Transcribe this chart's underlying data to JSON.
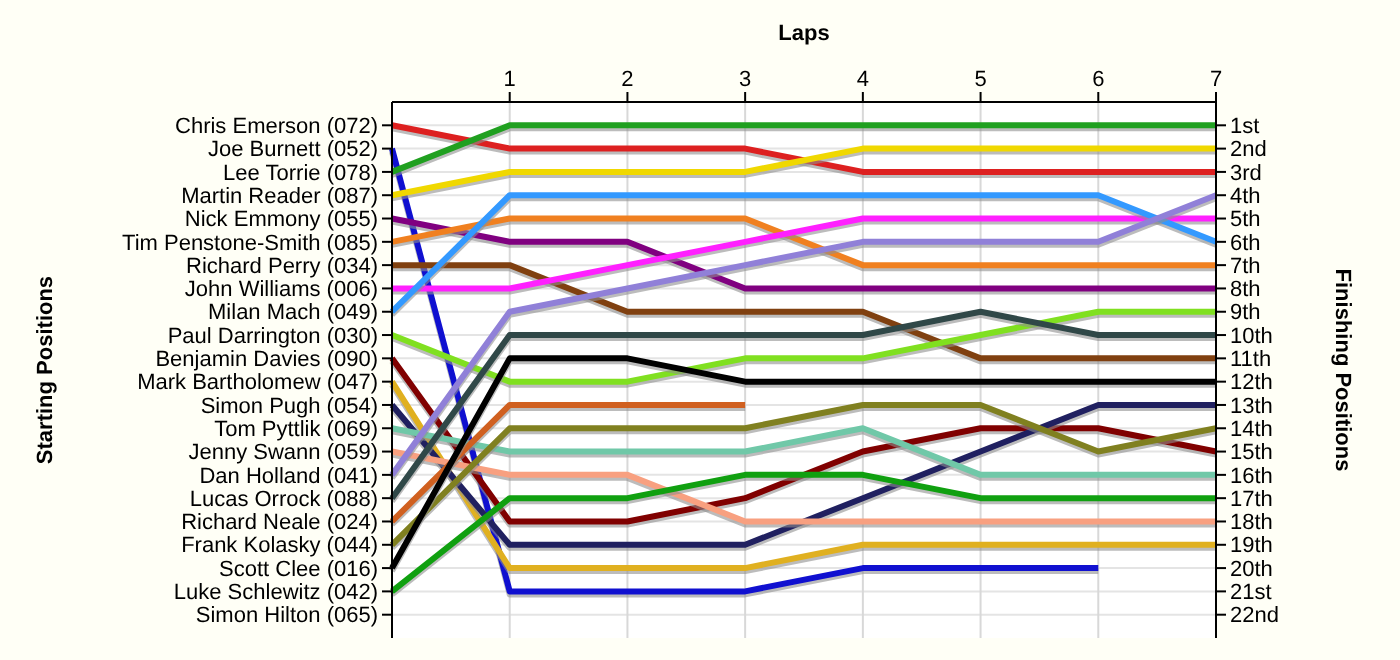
{
  "chart_data": {
    "type": "line",
    "xlabel": "Laps",
    "ylabel": "Finishing Positions",
    "x": [
      0,
      1,
      2,
      3,
      4,
      5,
      6,
      7
    ],
    "xlim": [
      0,
      7
    ],
    "xticks": [
      1,
      2,
      3,
      4,
      5,
      6,
      7
    ],
    "ylim": [
      23,
      0
    ],
    "yticks": [
      {
        "value": 1,
        "label": "1st"
      },
      {
        "value": 2,
        "label": "2nd"
      },
      {
        "value": 3,
        "label": "3rd"
      },
      {
        "value": 4,
        "label": "4th"
      },
      {
        "value": 5,
        "label": "5th"
      },
      {
        "value": 6,
        "label": "6th"
      },
      {
        "value": 7,
        "label": "7th"
      },
      {
        "value": 8,
        "label": "8th"
      },
      {
        "value": 9,
        "label": "9th"
      },
      {
        "value": 10,
        "label": "10th"
      },
      {
        "value": 11,
        "label": "11th"
      },
      {
        "value": 12,
        "label": "12th"
      },
      {
        "value": 13,
        "label": "13th"
      },
      {
        "value": 14,
        "label": "14th"
      },
      {
        "value": 15,
        "label": "15th"
      },
      {
        "value": 16,
        "label": "16th"
      },
      {
        "value": 17,
        "label": "17th"
      },
      {
        "value": 18,
        "label": "18th"
      },
      {
        "value": 19,
        "label": "19th"
      },
      {
        "value": 20,
        "label": "20th"
      },
      {
        "value": 21,
        "label": "21st"
      },
      {
        "value": 22,
        "label": "22nd"
      }
    ],
    "annotations": [
      "Starting Positions",
      "Chris Emerson (072)",
      "Joe Burnett (052)",
      "Lee Torrie (078)",
      "Martin Reader (087)",
      "Nick Emmony (055)",
      "Tim Penstone-Smith (085)",
      "Richard Perry (034)",
      "John Williams (006)",
      "Milan Mach (049)",
      "Paul Darrington (030)",
      "Benjamin Davies (090)",
      "Mark Bartholomew (047)",
      "Simon Pugh (054)",
      "Tom Pyttlik (069)",
      "Jenny Swann (059)",
      "Dan Holland (041)",
      "Lucas Orrock (088)",
      "Richard Neale (024)",
      "Frank Kolasky (044)",
      "Scott Clee (016)",
      "Luke Schlewitz (042)",
      "Simon Hilton (065)"
    ],
    "grid": true,
    "marker": "none",
    "line_style": "solid",
    "series": [
      {
        "color": "#dd2020",
        "values": [
          1,
          2,
          2,
          2,
          3,
          3,
          3,
          3
        ]
      },
      {
        "color": "#1010d0",
        "values": [
          2,
          21,
          21,
          21,
          20,
          20,
          20,
          null
        ]
      },
      {
        "color": "#20a020",
        "values": [
          3,
          1,
          1,
          1,
          1,
          1,
          1,
          1
        ]
      },
      {
        "color": "#f0d800",
        "values": [
          4,
          3,
          3,
          3,
          2,
          2,
          2,
          2
        ]
      },
      {
        "color": "#800080",
        "values": [
          5,
          6,
          6,
          8,
          8,
          8,
          8,
          8
        ]
      },
      {
        "color": "#f08020",
        "values": [
          6,
          5,
          5,
          5,
          7,
          7,
          7,
          7
        ]
      },
      {
        "color": "#804010",
        "values": [
          7,
          7,
          9,
          9,
          9,
          11,
          11,
          11
        ]
      },
      {
        "color": "#ff20ff",
        "values": [
          8,
          8,
          7,
          6,
          5,
          5,
          5,
          5
        ]
      },
      {
        "color": "#3399ff",
        "values": [
          9,
          4,
          4,
          4,
          4,
          4,
          4,
          6
        ]
      },
      {
        "color": "#80e020",
        "values": [
          10,
          12,
          12,
          11,
          11,
          10,
          9,
          9
        ]
      },
      {
        "color": "#800000",
        "values": [
          11,
          18,
          18,
          17,
          15,
          14,
          14,
          15
        ]
      },
      {
        "color": "#e0b020",
        "values": [
          12,
          20,
          20,
          20,
          19,
          19,
          19,
          19
        ]
      },
      {
        "color": "#202060",
        "values": [
          13,
          19,
          19,
          19,
          17,
          15,
          13,
          13
        ]
      },
      {
        "color": "#70c8a8",
        "values": [
          14,
          15,
          15,
          15,
          14,
          16,
          16,
          16
        ]
      },
      {
        "color": "#f8a080",
        "values": [
          15,
          16,
          16,
          18,
          18,
          18,
          18,
          18
        ]
      },
      {
        "color": "#9080d8",
        "values": [
          16,
          9,
          8,
          7,
          6,
          6,
          6,
          4
        ]
      },
      {
        "color": "#304848",
        "values": [
          17,
          10,
          10,
          10,
          10,
          9,
          10,
          10
        ]
      },
      {
        "color": "#d06020",
        "values": [
          18,
          13,
          13,
          13,
          null,
          null,
          null,
          null
        ]
      },
      {
        "color": "#808020",
        "values": [
          19,
          14,
          14,
          14,
          13,
          13,
          15,
          14
        ]
      },
      {
        "color": "#000000",
        "values": [
          20,
          11,
          11,
          12,
          12,
          12,
          12,
          12
        ]
      },
      {
        "color": "#10a010",
        "values": [
          21,
          17,
          17,
          16,
          16,
          17,
          17,
          17
        ]
      }
    ]
  }
}
